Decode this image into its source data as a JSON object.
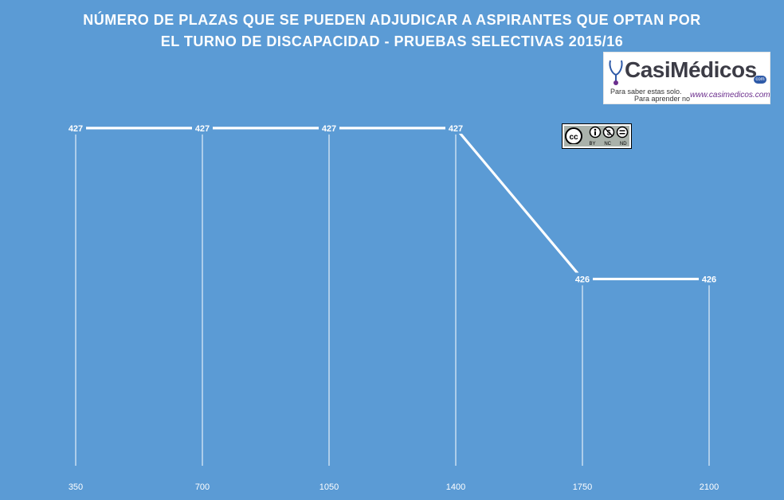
{
  "title_lines": [
    "NÚMERO DE PLAZAS QUE SE PUEDEN ADJUDICAR A ASPIRANTES QUE OPTAN POR",
    "EL TURNO DE DISCAPACIDAD - PRUEBAS SELECTIVAS 2015/16"
  ],
  "chart_data": {
    "type": "line",
    "title": "NÚMERO DE PLAZAS QUE SE PUEDEN ADJUDICAR A ASPIRANTES QUE OPTAN POR EL TURNO DE DISCAPACIDAD - PRUEBAS SELECTIVAS 2015/16",
    "categories": [
      "350",
      "700",
      "1050",
      "1400",
      "1750",
      "2100"
    ],
    "values": [
      427,
      427,
      427,
      427,
      426,
      426
    ],
    "data_labels": [
      "427",
      "427",
      "427",
      "427",
      "426",
      "426"
    ],
    "xlabel": "",
    "ylabel": "",
    "ylim": [
      425.5,
      427.2
    ],
    "drop_lines": true,
    "grid": false,
    "colors": {
      "background": "#5b9bd5",
      "line": "#ffffff",
      "text": "#ffffff"
    }
  },
  "logo": {
    "brand": "CasiMédicos",
    "com": "com",
    "tagline_1": "Para saber estas solo.",
    "tagline_2": "Para aprender no",
    "url": "www.casimedicos.com"
  },
  "license": {
    "icon": "cc-by-nc-nd-icon",
    "labels": [
      "BY",
      "NC",
      "ND"
    ]
  }
}
